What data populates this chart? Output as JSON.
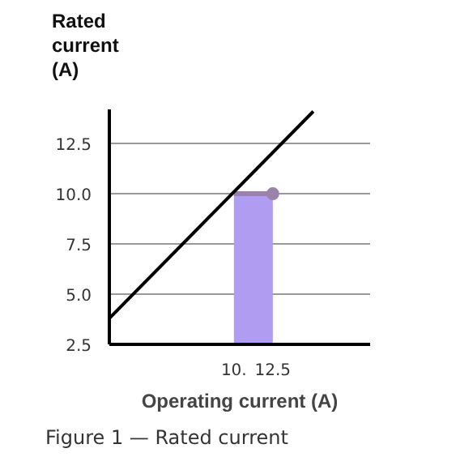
{
  "chart_data": {
    "type": "line",
    "ylabel": "Rated current (A)",
    "xlabel": "Operating current (A)",
    "annotations": [
      "Figure 1 — Rated current"
    ],
    "xlim": [
      2,
      18.75
    ],
    "ylim": [
      2.5,
      14.2
    ],
    "xticks": [
      {
        "value": 10,
        "label": "10."
      },
      12.5
    ],
    "yticks": [
      {
        "value": 2.5,
        "label": "2.5"
      },
      {
        "value": 5,
        "label": "5.0"
      },
      {
        "value": 7.5,
        "label": "7.5"
      },
      {
        "value": 10,
        "label": "10.0"
      },
      {
        "value": 12.5,
        "label": "12.5"
      }
    ],
    "grid": "y",
    "series": [
      {
        "type": "area",
        "color": "#b09cf0",
        "x": [
          10,
          12.5
        ],
        "values": [
          10,
          10
        ]
      },
      {
        "color": "#000000",
        "x": [
          2,
          15.1
        ],
        "values": [
          3.8,
          14.1
        ]
      },
      {
        "type": "scatter",
        "color": "#9a82a8",
        "x": [
          12.5
        ],
        "values": [
          10
        ]
      }
    ]
  }
}
